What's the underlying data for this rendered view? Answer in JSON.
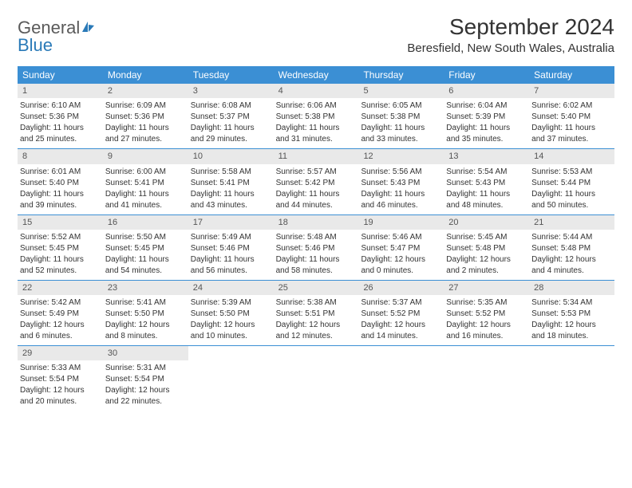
{
  "logo": {
    "text1": "General",
    "text2": "Blue"
  },
  "title": "September 2024",
  "location": "Beresfield, New South Wales, Australia",
  "colors": {
    "header_bg": "#3b8fd4",
    "header_text": "#ffffff",
    "daynum_bg": "#e9e9e9",
    "row_border": "#3b8fd4",
    "logo_gray": "#5a5a5a",
    "logo_blue": "#2a7ab8"
  },
  "dow": [
    "Sunday",
    "Monday",
    "Tuesday",
    "Wednesday",
    "Thursday",
    "Friday",
    "Saturday"
  ],
  "weeks": [
    [
      {
        "n": "1",
        "sr": "Sunrise: 6:10 AM",
        "ss": "Sunset: 5:36 PM",
        "d1": "Daylight: 11 hours",
        "d2": "and 25 minutes."
      },
      {
        "n": "2",
        "sr": "Sunrise: 6:09 AM",
        "ss": "Sunset: 5:36 PM",
        "d1": "Daylight: 11 hours",
        "d2": "and 27 minutes."
      },
      {
        "n": "3",
        "sr": "Sunrise: 6:08 AM",
        "ss": "Sunset: 5:37 PM",
        "d1": "Daylight: 11 hours",
        "d2": "and 29 minutes."
      },
      {
        "n": "4",
        "sr": "Sunrise: 6:06 AM",
        "ss": "Sunset: 5:38 PM",
        "d1": "Daylight: 11 hours",
        "d2": "and 31 minutes."
      },
      {
        "n": "5",
        "sr": "Sunrise: 6:05 AM",
        "ss": "Sunset: 5:38 PM",
        "d1": "Daylight: 11 hours",
        "d2": "and 33 minutes."
      },
      {
        "n": "6",
        "sr": "Sunrise: 6:04 AM",
        "ss": "Sunset: 5:39 PM",
        "d1": "Daylight: 11 hours",
        "d2": "and 35 minutes."
      },
      {
        "n": "7",
        "sr": "Sunrise: 6:02 AM",
        "ss": "Sunset: 5:40 PM",
        "d1": "Daylight: 11 hours",
        "d2": "and 37 minutes."
      }
    ],
    [
      {
        "n": "8",
        "sr": "Sunrise: 6:01 AM",
        "ss": "Sunset: 5:40 PM",
        "d1": "Daylight: 11 hours",
        "d2": "and 39 minutes."
      },
      {
        "n": "9",
        "sr": "Sunrise: 6:00 AM",
        "ss": "Sunset: 5:41 PM",
        "d1": "Daylight: 11 hours",
        "d2": "and 41 minutes."
      },
      {
        "n": "10",
        "sr": "Sunrise: 5:58 AM",
        "ss": "Sunset: 5:41 PM",
        "d1": "Daylight: 11 hours",
        "d2": "and 43 minutes."
      },
      {
        "n": "11",
        "sr": "Sunrise: 5:57 AM",
        "ss": "Sunset: 5:42 PM",
        "d1": "Daylight: 11 hours",
        "d2": "and 44 minutes."
      },
      {
        "n": "12",
        "sr": "Sunrise: 5:56 AM",
        "ss": "Sunset: 5:43 PM",
        "d1": "Daylight: 11 hours",
        "d2": "and 46 minutes."
      },
      {
        "n": "13",
        "sr": "Sunrise: 5:54 AM",
        "ss": "Sunset: 5:43 PM",
        "d1": "Daylight: 11 hours",
        "d2": "and 48 minutes."
      },
      {
        "n": "14",
        "sr": "Sunrise: 5:53 AM",
        "ss": "Sunset: 5:44 PM",
        "d1": "Daylight: 11 hours",
        "d2": "and 50 minutes."
      }
    ],
    [
      {
        "n": "15",
        "sr": "Sunrise: 5:52 AM",
        "ss": "Sunset: 5:45 PM",
        "d1": "Daylight: 11 hours",
        "d2": "and 52 minutes."
      },
      {
        "n": "16",
        "sr": "Sunrise: 5:50 AM",
        "ss": "Sunset: 5:45 PM",
        "d1": "Daylight: 11 hours",
        "d2": "and 54 minutes."
      },
      {
        "n": "17",
        "sr": "Sunrise: 5:49 AM",
        "ss": "Sunset: 5:46 PM",
        "d1": "Daylight: 11 hours",
        "d2": "and 56 minutes."
      },
      {
        "n": "18",
        "sr": "Sunrise: 5:48 AM",
        "ss": "Sunset: 5:46 PM",
        "d1": "Daylight: 11 hours",
        "d2": "and 58 minutes."
      },
      {
        "n": "19",
        "sr": "Sunrise: 5:46 AM",
        "ss": "Sunset: 5:47 PM",
        "d1": "Daylight: 12 hours",
        "d2": "and 0 minutes."
      },
      {
        "n": "20",
        "sr": "Sunrise: 5:45 AM",
        "ss": "Sunset: 5:48 PM",
        "d1": "Daylight: 12 hours",
        "d2": "and 2 minutes."
      },
      {
        "n": "21",
        "sr": "Sunrise: 5:44 AM",
        "ss": "Sunset: 5:48 PM",
        "d1": "Daylight: 12 hours",
        "d2": "and 4 minutes."
      }
    ],
    [
      {
        "n": "22",
        "sr": "Sunrise: 5:42 AM",
        "ss": "Sunset: 5:49 PM",
        "d1": "Daylight: 12 hours",
        "d2": "and 6 minutes."
      },
      {
        "n": "23",
        "sr": "Sunrise: 5:41 AM",
        "ss": "Sunset: 5:50 PM",
        "d1": "Daylight: 12 hours",
        "d2": "and 8 minutes."
      },
      {
        "n": "24",
        "sr": "Sunrise: 5:39 AM",
        "ss": "Sunset: 5:50 PM",
        "d1": "Daylight: 12 hours",
        "d2": "and 10 minutes."
      },
      {
        "n": "25",
        "sr": "Sunrise: 5:38 AM",
        "ss": "Sunset: 5:51 PM",
        "d1": "Daylight: 12 hours",
        "d2": "and 12 minutes."
      },
      {
        "n": "26",
        "sr": "Sunrise: 5:37 AM",
        "ss": "Sunset: 5:52 PM",
        "d1": "Daylight: 12 hours",
        "d2": "and 14 minutes."
      },
      {
        "n": "27",
        "sr": "Sunrise: 5:35 AM",
        "ss": "Sunset: 5:52 PM",
        "d1": "Daylight: 12 hours",
        "d2": "and 16 minutes."
      },
      {
        "n": "28",
        "sr": "Sunrise: 5:34 AM",
        "ss": "Sunset: 5:53 PM",
        "d1": "Daylight: 12 hours",
        "d2": "and 18 minutes."
      }
    ],
    [
      {
        "n": "29",
        "sr": "Sunrise: 5:33 AM",
        "ss": "Sunset: 5:54 PM",
        "d1": "Daylight: 12 hours",
        "d2": "and 20 minutes."
      },
      {
        "n": "30",
        "sr": "Sunrise: 5:31 AM",
        "ss": "Sunset: 5:54 PM",
        "d1": "Daylight: 12 hours",
        "d2": "and 22 minutes."
      },
      null,
      null,
      null,
      null,
      null
    ]
  ]
}
